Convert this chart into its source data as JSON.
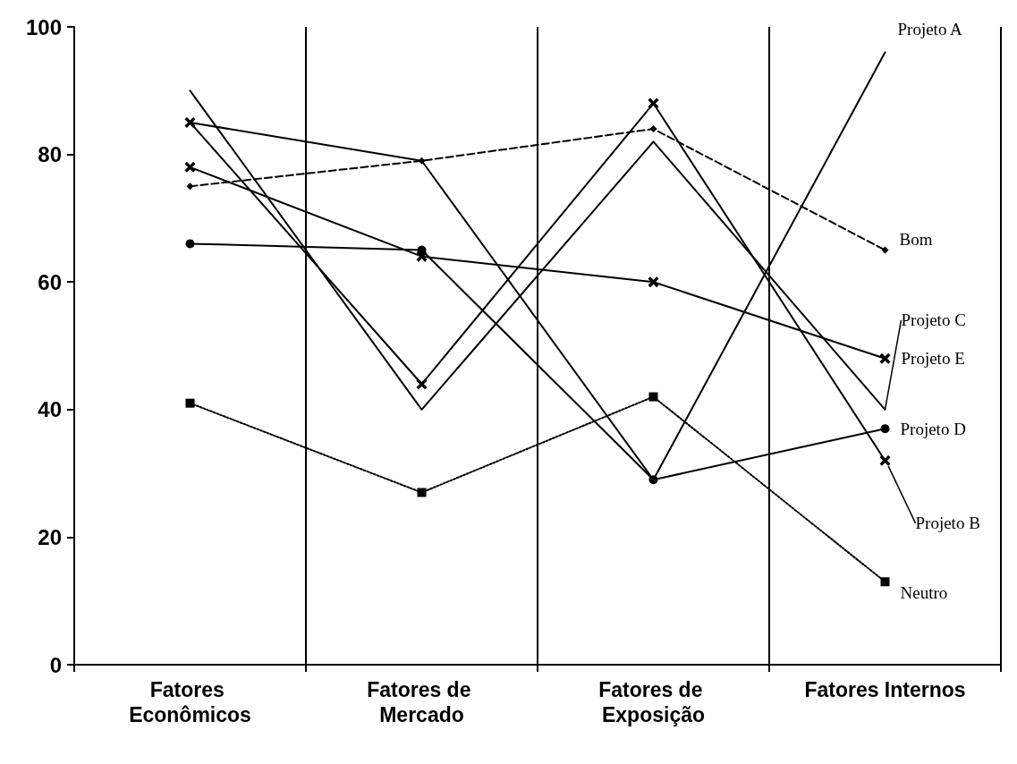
{
  "chart_data": {
    "type": "line",
    "categories": [
      "Fatores Econômicos",
      "Fatores de Mercado",
      "Fatores de Exposição",
      "Fatores Internos"
    ],
    "ylim": [
      0,
      100
    ],
    "yticks": [
      0,
      20,
      40,
      60,
      80,
      100
    ],
    "grid": "x",
    "legend": false,
    "series": [
      {
        "name": "Projeto A",
        "color": "#000000",
        "line_style": "solid",
        "values": [
          85,
          79,
          29,
          96
        ]
      },
      {
        "name": "Projeto B",
        "color": "#000000",
        "marker": "cross",
        "line_style": "solid",
        "values": [
          85,
          44,
          88,
          32
        ]
      },
      {
        "name": "Projeto C",
        "color": "#000000",
        "marker": "none",
        "line_style": "solid",
        "values": [
          90,
          40,
          82,
          40
        ]
      },
      {
        "name": "Projeto D",
        "color": "#000000",
        "marker": "circle",
        "line_style": "solid",
        "values": [
          66,
          65,
          29,
          37
        ]
      },
      {
        "name": "Projeto E",
        "color": "#000000",
        "marker": "cross",
        "line_style": "solid",
        "values": [
          78,
          64,
          60,
          48
        ]
      },
      {
        "name": "Bom",
        "color": "#000000",
        "marker": "diamond",
        "line_style": "dashed",
        "values": [
          75,
          79,
          84,
          65
        ]
      },
      {
        "name": "Neutro",
        "color": "#000000",
        "marker": "square",
        "line_style": "dotted",
        "values": [
          41,
          27,
          42,
          13
        ]
      }
    ]
  }
}
